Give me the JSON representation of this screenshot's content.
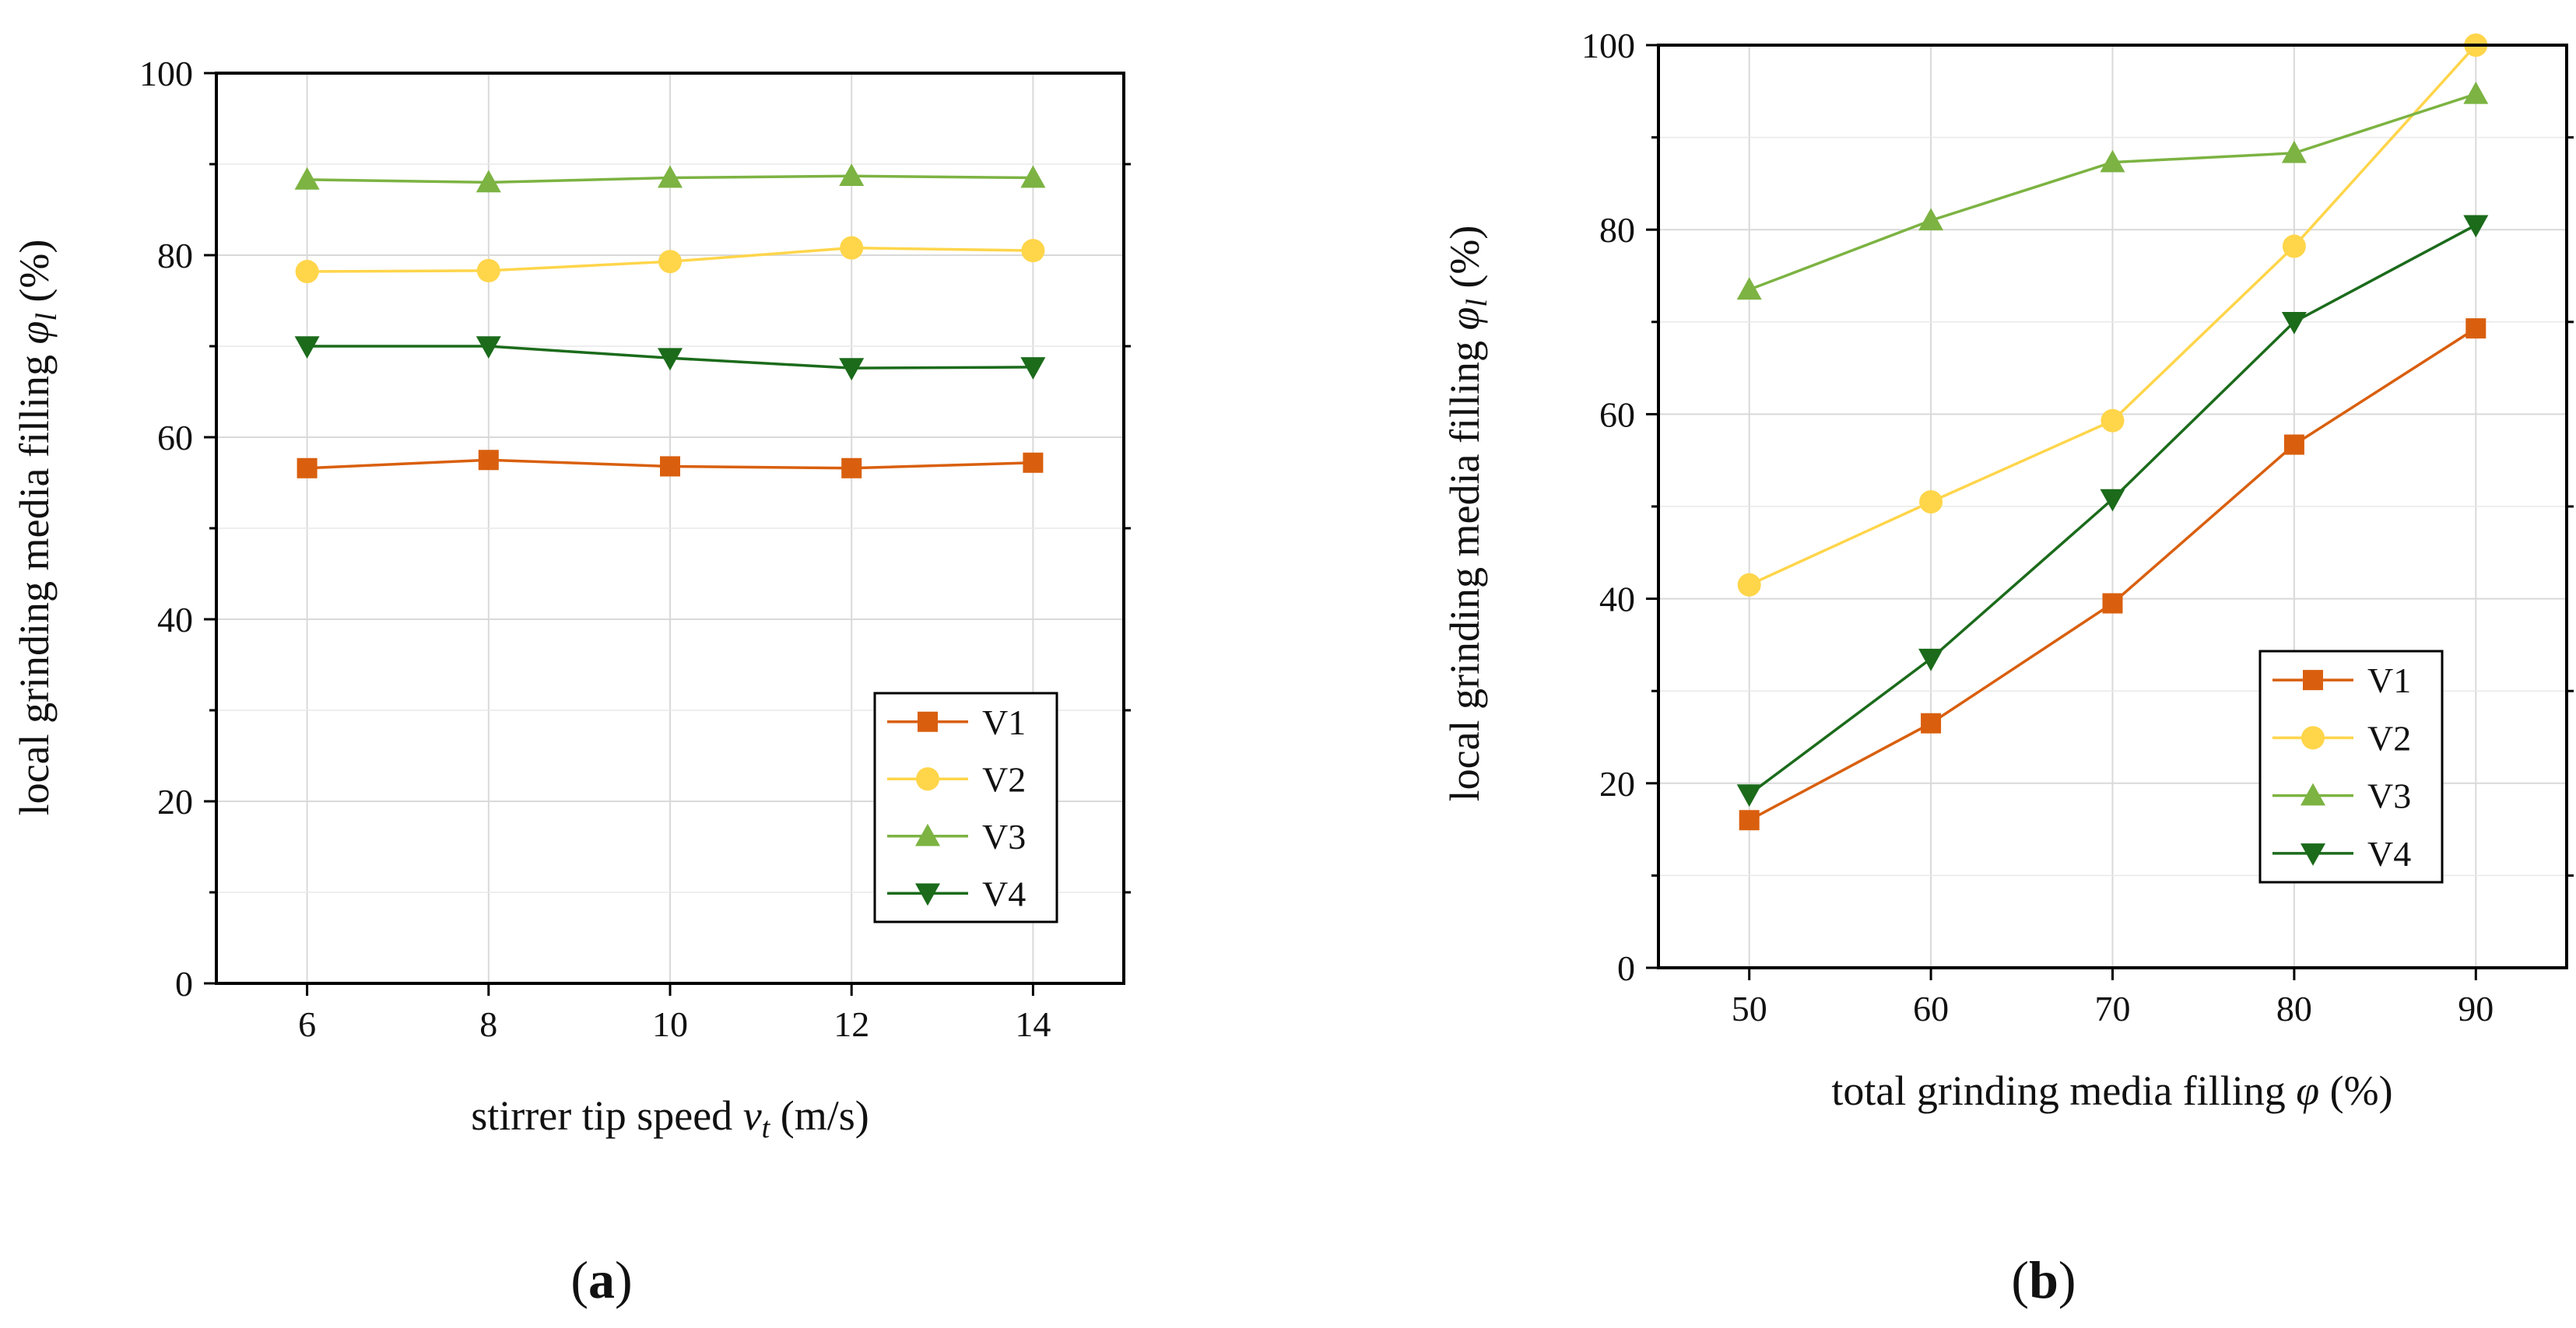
{
  "chart_data": [
    {
      "type": "line",
      "panel_label": "(a)",
      "xlabel": "stirrer tip speed v_t (m/s)",
      "xlabel_parts": {
        "pre": "stirrer tip speed ",
        "sym": "v",
        "sub": "t",
        "post": " (m/s)"
      },
      "ylabel": "local grinding media filling φ_l (%)",
      "ylabel_parts": {
        "pre": "local grinding media filling ",
        "sym": "φ",
        "sub": "l",
        "post": " (%)"
      },
      "xlim": [
        5,
        15
      ],
      "ylim": [
        0,
        100
      ],
      "x_ticks": [
        6,
        8,
        10,
        12,
        14
      ],
      "y_ticks": [
        0,
        20,
        40,
        60,
        80,
        100
      ],
      "grid": true,
      "legend_position": "bottom-right",
      "x": [
        6,
        8,
        10,
        12,
        14
      ],
      "series": [
        {
          "name": "V1",
          "values": [
            56.6,
            57.5,
            56.8,
            56.6,
            57.2
          ],
          "color": "#d95f0e",
          "marker": "square"
        },
        {
          "name": "V2",
          "values": [
            78.2,
            78.3,
            79.3,
            80.8,
            80.5
          ],
          "color": "#ffd54a",
          "marker": "circle"
        },
        {
          "name": "V3",
          "values": [
            88.3,
            88.0,
            88.5,
            88.7,
            88.5
          ],
          "color": "#7cb342",
          "marker": "triangle-up"
        },
        {
          "name": "V4",
          "values": [
            70.0,
            70.0,
            68.7,
            67.6,
            67.7
          ],
          "color": "#1b6b1b",
          "marker": "triangle-down"
        }
      ]
    },
    {
      "type": "line",
      "panel_label": "(b)",
      "xlabel": "total grinding media filling φ (%)",
      "xlabel_parts": {
        "pre": "total grinding media filling ",
        "sym": "φ",
        "sub": "",
        "post": " (%)"
      },
      "ylabel": "local grinding media filling φ_l (%)",
      "ylabel_parts": {
        "pre": "local grinding media filling ",
        "sym": "φ",
        "sub": "l",
        "post": " (%)"
      },
      "xlim": [
        45,
        95
      ],
      "ylim": [
        0,
        100
      ],
      "x_ticks": [
        50,
        60,
        70,
        80,
        90
      ],
      "y_ticks": [
        0,
        20,
        40,
        60,
        80,
        100
      ],
      "grid": true,
      "legend_position": "bottom-right",
      "x": [
        50,
        60,
        70,
        80,
        90
      ],
      "series": [
        {
          "name": "V1",
          "values": [
            16.0,
            26.5,
            39.5,
            56.7,
            69.3
          ],
          "color": "#d95f0e",
          "marker": "square"
        },
        {
          "name": "V2",
          "values": [
            41.5,
            50.5,
            59.3,
            78.2,
            100.0
          ],
          "color": "#ffd54a",
          "marker": "circle"
        },
        {
          "name": "V3",
          "values": [
            73.5,
            81.0,
            87.3,
            88.3,
            94.7
          ],
          "color": "#7cb342",
          "marker": "triangle-up"
        },
        {
          "name": "V4",
          "values": [
            18.8,
            33.5,
            50.8,
            70.0,
            80.5
          ],
          "color": "#1b6b1b",
          "marker": "triangle-down"
        }
      ]
    }
  ]
}
